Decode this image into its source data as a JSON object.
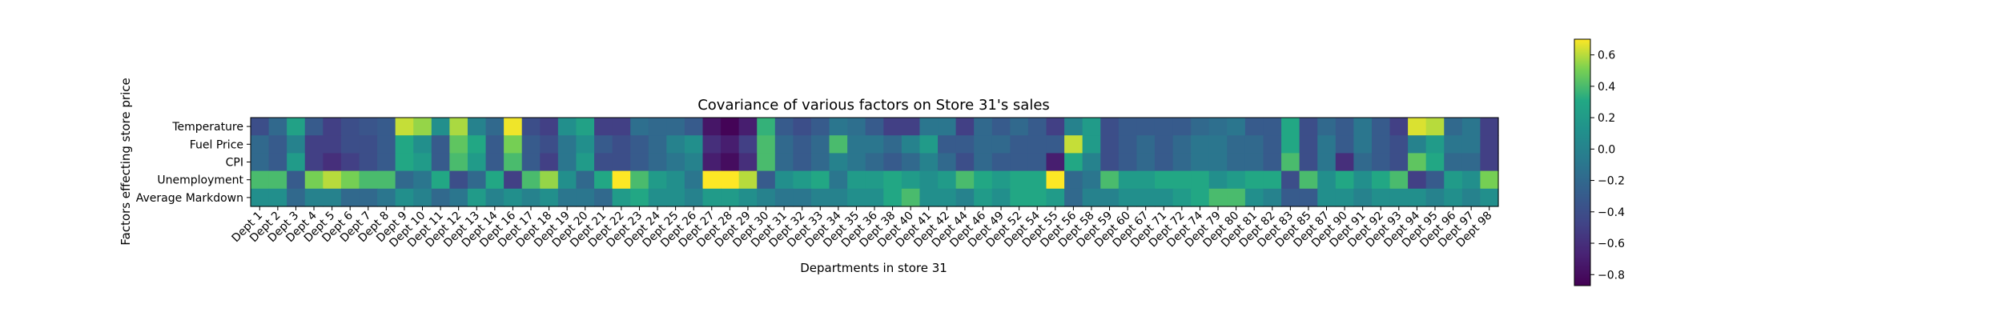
{
  "chart_data": {
    "type": "heatmap",
    "title": "Covariance of various factors on Store 31's sales",
    "xlabel": "Departments in store 31",
    "ylabel": "Factors effecting store price",
    "rows": [
      "Temperature",
      "Fuel Price",
      "CPI",
      "Unemployment",
      "Average Markdown"
    ],
    "columns": [
      "Dept 1",
      "Dept 2",
      "Dept 3",
      "Dept 4",
      "Dept 5",
      "Dept 6",
      "Dept 7",
      "Dept 8",
      "Dept 9",
      "Dept 10",
      "Dept 11",
      "Dept 12",
      "Dept 13",
      "Dept 14",
      "Dept 16",
      "Dept 17",
      "Dept 18",
      "Dept 19",
      "Dept 20",
      "Dept 21",
      "Dept 22",
      "Dept 23",
      "Dept 24",
      "Dept 25",
      "Dept 26",
      "Dept 27",
      "Dept 28",
      "Dept 29",
      "Dept 30",
      "Dept 31",
      "Dept 32",
      "Dept 33",
      "Dept 34",
      "Dept 35",
      "Dept 36",
      "Dept 38",
      "Dept 40",
      "Dept 41",
      "Dept 42",
      "Dept 44",
      "Dept 46",
      "Dept 49",
      "Dept 52",
      "Dept 54",
      "Dept 55",
      "Dept 56",
      "Dept 58",
      "Dept 59",
      "Dept 60",
      "Dept 67",
      "Dept 71",
      "Dept 72",
      "Dept 74",
      "Dept 79",
      "Dept 80",
      "Dept 81",
      "Dept 82",
      "Dept 83",
      "Dept 85",
      "Dept 87",
      "Dept 90",
      "Dept 91",
      "Dept 92",
      "Dept 93",
      "Dept 94",
      "Dept 95",
      "Dept 96",
      "Dept 97",
      "Dept 98"
    ],
    "values": [
      [
        -0.4,
        -0.2,
        0.25,
        -0.3,
        -0.5,
        -0.4,
        -0.35,
        -0.3,
        0.62,
        0.55,
        0.1,
        0.58,
        0.0,
        -0.2,
        0.68,
        -0.4,
        -0.5,
        0.1,
        0.25,
        -0.5,
        -0.5,
        -0.15,
        -0.2,
        -0.2,
        -0.3,
        -0.75,
        -0.85,
        -0.7,
        0.35,
        -0.3,
        -0.4,
        -0.3,
        -0.1,
        -0.15,
        -0.3,
        -0.5,
        -0.5,
        -0.1,
        -0.1,
        -0.5,
        -0.2,
        -0.3,
        -0.2,
        -0.3,
        -0.5,
        0.0,
        0.2,
        -0.4,
        -0.3,
        -0.3,
        -0.3,
        -0.3,
        -0.2,
        -0.15,
        -0.1,
        -0.3,
        -0.3,
        0.3,
        -0.4,
        -0.2,
        -0.3,
        -0.1,
        -0.3,
        -0.5,
        0.65,
        0.6,
        -0.2,
        -0.1,
        -0.5
      ],
      [
        -0.2,
        -0.3,
        0.0,
        -0.5,
        -0.5,
        -0.4,
        -0.4,
        -0.3,
        0.3,
        0.1,
        -0.3,
        0.45,
        0.3,
        -0.3,
        0.5,
        -0.3,
        -0.4,
        -0.1,
        0.1,
        -0.3,
        -0.4,
        -0.3,
        -0.2,
        0.0,
        0.1,
        -0.6,
        -0.7,
        -0.5,
        0.4,
        -0.2,
        -0.3,
        -0.2,
        0.4,
        -0.1,
        -0.1,
        -0.2,
        0.0,
        0.2,
        -0.3,
        -0.3,
        -0.2,
        -0.2,
        -0.3,
        -0.3,
        -0.3,
        0.62,
        0.2,
        -0.4,
        -0.3,
        -0.2,
        -0.3,
        -0.2,
        -0.1,
        -0.1,
        -0.2,
        -0.2,
        -0.3,
        0.3,
        -0.4,
        -0.1,
        -0.3,
        -0.1,
        -0.3,
        -0.4,
        0.0,
        0.2,
        -0.1,
        -0.1,
        -0.5
      ],
      [
        -0.2,
        -0.3,
        0.2,
        -0.5,
        -0.6,
        -0.5,
        -0.4,
        -0.3,
        0.3,
        0.2,
        -0.3,
        0.4,
        0.2,
        -0.3,
        0.4,
        -0.3,
        -0.5,
        -0.1,
        0.2,
        -0.4,
        -0.4,
        -0.3,
        -0.2,
        -0.1,
        0.0,
        -0.7,
        -0.8,
        -0.6,
        0.4,
        -0.2,
        -0.3,
        -0.2,
        0.0,
        -0.1,
        -0.2,
        -0.3,
        -0.2,
        0.0,
        -0.2,
        -0.4,
        -0.2,
        -0.3,
        -0.3,
        -0.3,
        -0.7,
        0.3,
        0.0,
        -0.4,
        -0.3,
        -0.2,
        -0.3,
        -0.2,
        -0.1,
        -0.1,
        -0.2,
        -0.2,
        -0.3,
        0.4,
        -0.4,
        -0.1,
        -0.6,
        -0.2,
        -0.3,
        -0.4,
        0.45,
        0.3,
        -0.2,
        -0.2,
        -0.5
      ],
      [
        0.4,
        0.4,
        -0.3,
        0.5,
        0.6,
        0.5,
        0.4,
        0.4,
        -0.2,
        -0.1,
        0.3,
        -0.4,
        -0.2,
        0.3,
        -0.5,
        0.4,
        0.55,
        0.1,
        -0.2,
        0.3,
        0.7,
        0.4,
        0.2,
        0.1,
        -0.1,
        0.7,
        0.7,
        0.6,
        -0.3,
        0.1,
        0.2,
        0.3,
        -0.1,
        0.2,
        0.2,
        0.3,
        0.2,
        0.1,
        0.2,
        0.4,
        0.3,
        0.2,
        0.3,
        0.3,
        0.7,
        -0.2,
        -0.1,
        0.4,
        0.2,
        0.2,
        0.3,
        0.3,
        0.3,
        0.1,
        0.2,
        0.3,
        0.3,
        -0.4,
        0.4,
        0.1,
        0.3,
        0.1,
        0.3,
        0.4,
        -0.5,
        -0.3,
        0.2,
        0.1,
        0.5
      ],
      [
        0.1,
        0.1,
        -0.2,
        0.0,
        0.0,
        -0.2,
        -0.2,
        -0.1,
        0.1,
        0.0,
        -0.2,
        -0.1,
        0.2,
        0.0,
        0.1,
        0.0,
        0.1,
        -0.1,
        -0.1,
        -0.2,
        0.2,
        0.3,
        0.1,
        0.1,
        0.0,
        0.2,
        0.2,
        0.1,
        0.0,
        -0.1,
        -0.1,
        0.0,
        0.0,
        0.1,
        0.1,
        0.3,
        0.4,
        0.1,
        0.1,
        0.0,
        0.2,
        0.1,
        0.3,
        0.3,
        0.2,
        -0.2,
        0.0,
        0.0,
        0.1,
        0.1,
        0.1,
        0.2,
        0.3,
        0.4,
        0.4,
        0.1,
        0.0,
        -0.3,
        -0.3,
        0.1,
        0.1,
        0.0,
        0.1,
        0.1,
        0.1,
        0.0,
        0.1,
        0.0,
        0.1
      ]
    ],
    "colorbar": {
      "min": -0.87,
      "max": 0.7,
      "ticks": [
        "0.6",
        "0.4",
        "0.2",
        "0.0",
        "−0.2",
        "−0.4",
        "−0.6",
        "−0.8"
      ],
      "tick_values": [
        0.6,
        0.4,
        0.2,
        0.0,
        -0.2,
        -0.4,
        -0.6,
        -0.8
      ],
      "colormap": "viridis"
    }
  }
}
